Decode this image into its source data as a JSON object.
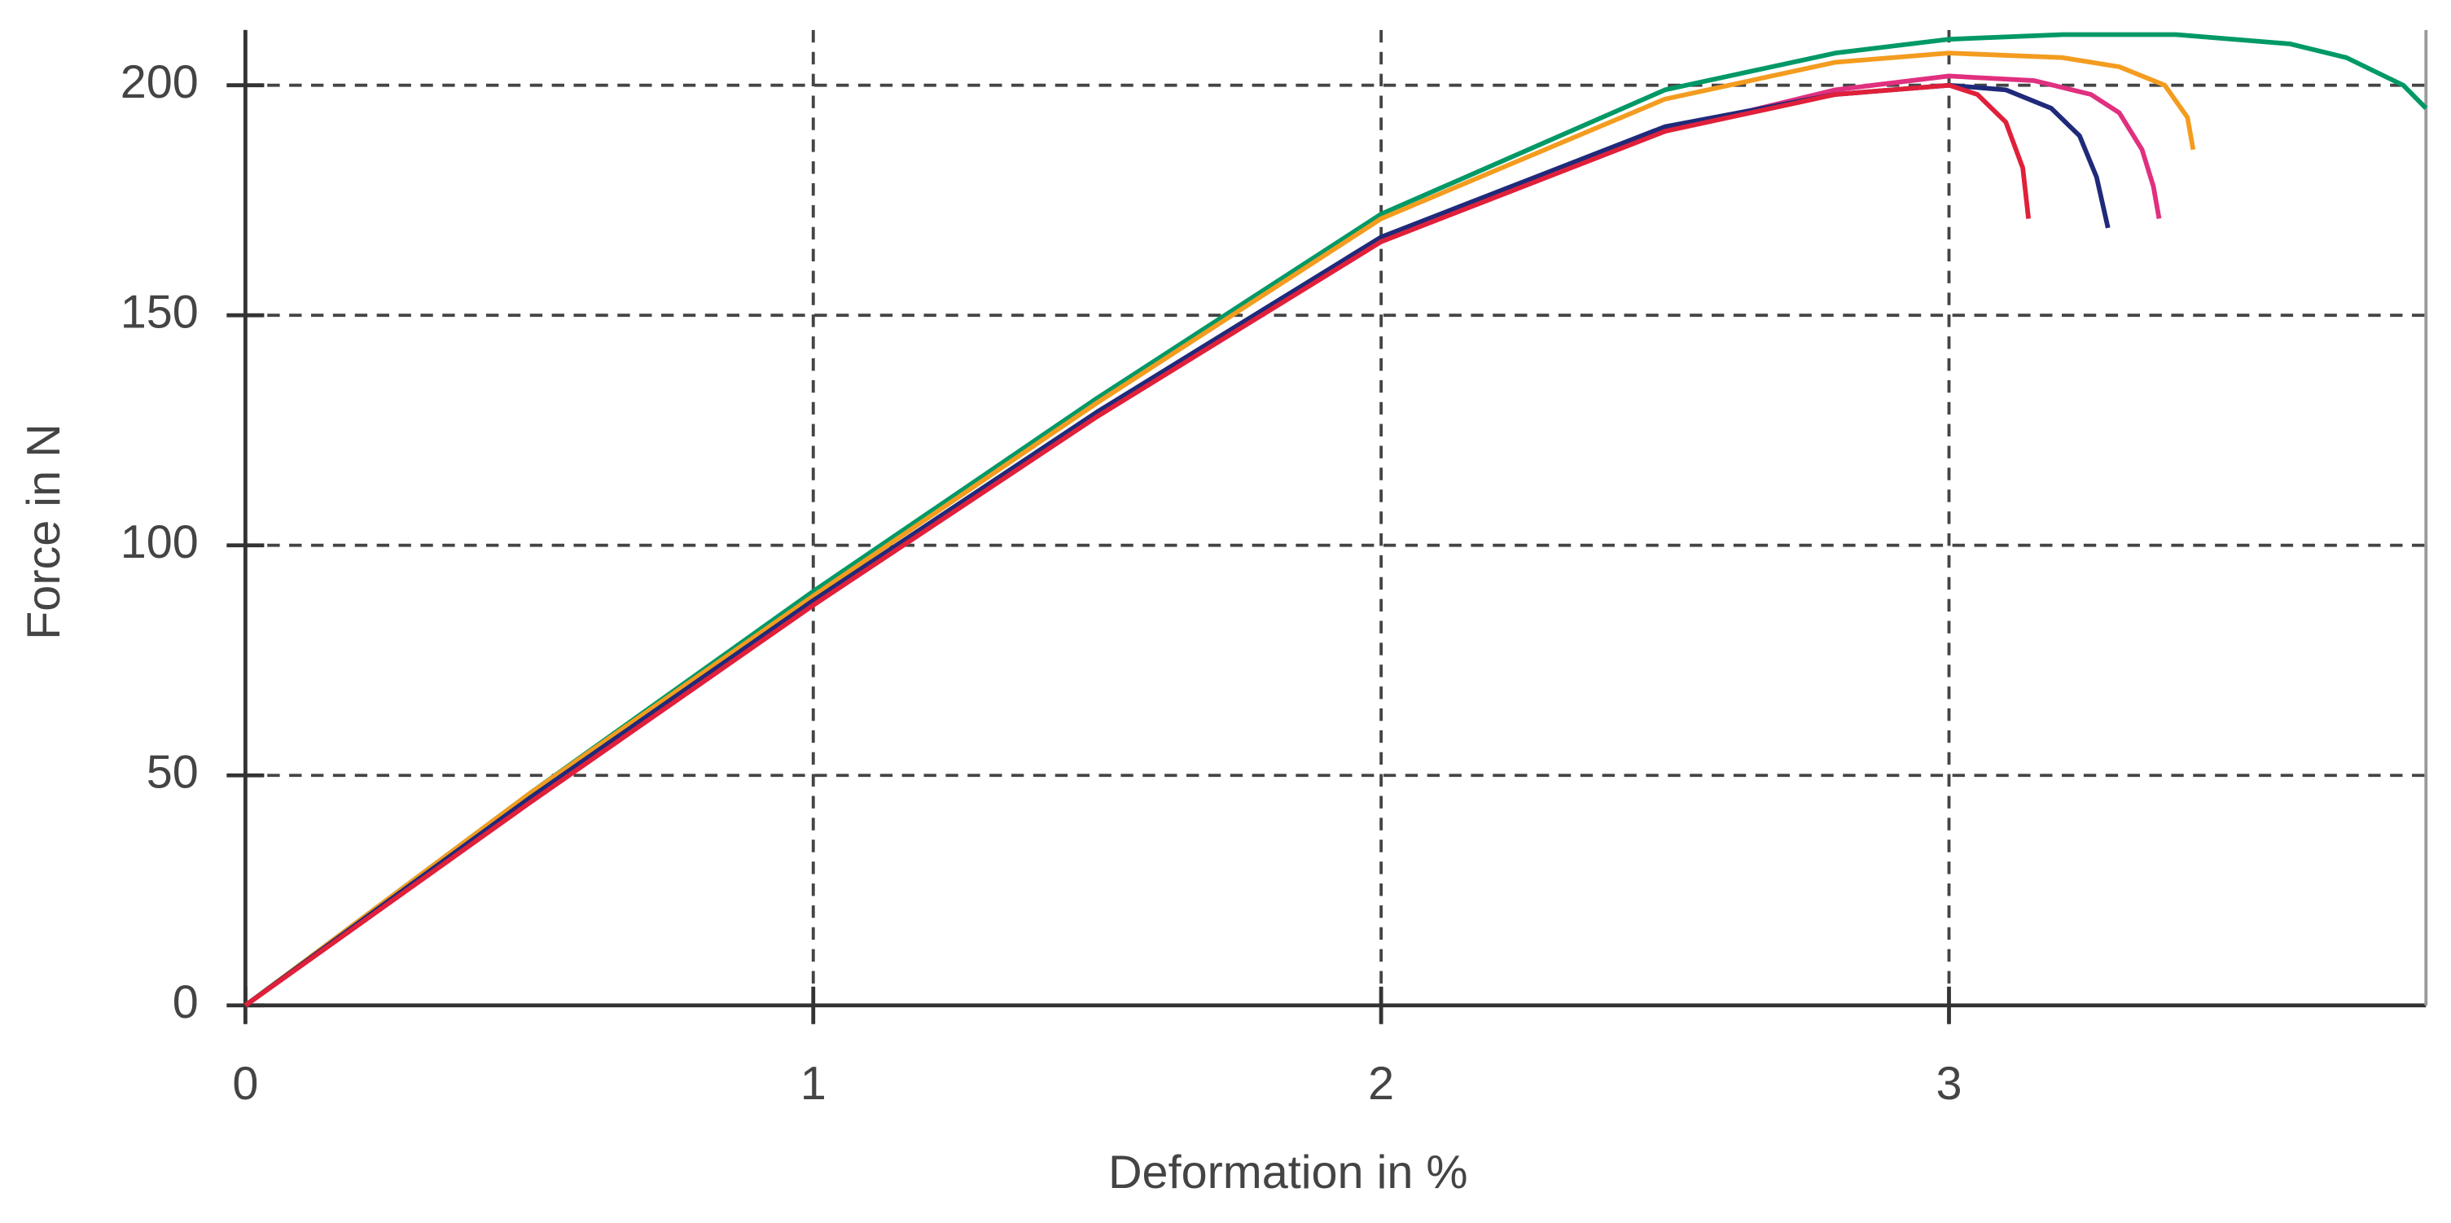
{
  "chart_data": {
    "type": "line",
    "xlabel": "Deformation in %",
    "ylabel": "Force in N",
    "xlim": [
      0,
      3.84
    ],
    "ylim": [
      0,
      212
    ],
    "xticks": [
      0,
      1,
      2,
      3
    ],
    "yticks": [
      0,
      50,
      100,
      150,
      200
    ],
    "grid": true,
    "series": [
      {
        "color": "#009966",
        "x": [
          0,
          0.5,
          1,
          1.5,
          2,
          2.5,
          2.8,
          3.0,
          3.2,
          3.4,
          3.6,
          3.7,
          3.8,
          3.84
        ],
        "values": [
          0,
          46,
          90,
          132,
          172,
          199,
          207,
          210,
          211,
          211,
          209,
          206,
          200,
          195
        ]
      },
      {
        "color": "#f39c1f",
        "x": [
          0,
          0.5,
          1,
          1.5,
          2,
          2.5,
          2.8,
          3.0,
          3.2,
          3.3,
          3.38,
          3.42,
          3.43
        ],
        "values": [
          0,
          46,
          89,
          131,
          171,
          197,
          205,
          207,
          206,
          204,
          200,
          193,
          186
        ]
      },
      {
        "color": "#e0307f",
        "x": [
          0,
          0.5,
          1,
          1.5,
          2,
          2.5,
          2.8,
          3.0,
          3.15,
          3.25,
          3.3,
          3.34,
          3.36,
          3.37
        ],
        "values": [
          0,
          44,
          87,
          128,
          166,
          190,
          199,
          202,
          201,
          198,
          194,
          186,
          178,
          171
        ]
      },
      {
        "color": "#1f2a7a",
        "x": [
          0,
          0.5,
          1,
          1.5,
          2,
          2.5,
          2.8,
          3.0,
          3.1,
          3.18,
          3.23,
          3.26,
          3.28
        ],
        "values": [
          0,
          45,
          88,
          129,
          167,
          191,
          198,
          200,
          199,
          195,
          189,
          180,
          169
        ]
      },
      {
        "color": "#e0203a",
        "x": [
          0,
          0.5,
          1,
          1.5,
          2,
          2.5,
          2.8,
          3.0,
          3.05,
          3.1,
          3.13,
          3.14
        ],
        "values": [
          0,
          44,
          87,
          128,
          166,
          190,
          198,
          200,
          198,
          192,
          182,
          171
        ]
      }
    ]
  }
}
